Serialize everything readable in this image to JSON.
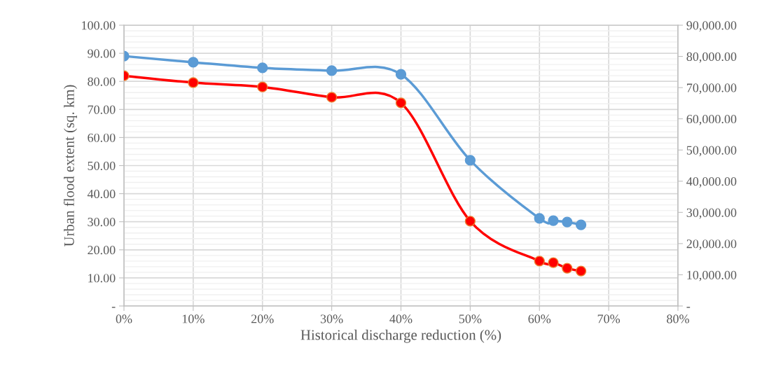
{
  "chart_data": {
    "type": "line",
    "xlabel": "Historical discharge reduction (%)",
    "ylabel": "Urban flood extent (sq. km)",
    "x": [
      0,
      10,
      20,
      30,
      40,
      50,
      60,
      62,
      64,
      66
    ],
    "series": [
      {
        "color": "#5b9bd5",
        "values": [
          89.0,
          86.8,
          84.8,
          83.8,
          82.5,
          51.9,
          31.2,
          30.4,
          29.9,
          28.9
        ]
      },
      {
        "color": "#ff0000",
        "axis": "y2",
        "values": [
          73800,
          71600,
          70200,
          66900,
          65100,
          27200,
          14400,
          13900,
          12100,
          11200
        ]
      }
    ],
    "xlim": [
      0,
      80
    ],
    "xticks": [
      {
        "value": 0,
        "label": "0%"
      },
      {
        "value": 10,
        "label": "10%"
      },
      {
        "value": 20,
        "label": "20%"
      },
      {
        "value": 30,
        "label": "30%"
      },
      {
        "value": 40,
        "label": "40%"
      },
      {
        "value": 50,
        "label": "50%"
      },
      {
        "value": 60,
        "label": "60%"
      },
      {
        "value": 70,
        "label": "70%"
      },
      {
        "value": 80,
        "label": "80%"
      }
    ],
    "ylim": [
      0,
      100
    ],
    "yticks": [
      {
        "value": 0,
        "label": "-"
      },
      {
        "value": 10,
        "label": "10.00"
      },
      {
        "value": 20,
        "label": "20.00"
      },
      {
        "value": 30,
        "label": "30.00"
      },
      {
        "value": 40,
        "label": "40.00"
      },
      {
        "value": 50,
        "label": "50.00"
      },
      {
        "value": 60,
        "label": "60.00"
      },
      {
        "value": 70,
        "label": "70.00"
      },
      {
        "value": 80,
        "label": "80.00"
      },
      {
        "value": 90,
        "label": "90.00"
      },
      {
        "value": 100,
        "label": "100.00"
      }
    ],
    "y2lim": [
      0,
      90000
    ],
    "y2ticks": [
      {
        "value": 0,
        "label": "-"
      },
      {
        "value": 10000,
        "label": "10,000.00"
      },
      {
        "value": 20000,
        "label": "20,000.00"
      },
      {
        "value": 30000,
        "label": "30,000.00"
      },
      {
        "value": 40000,
        "label": "40,000.00"
      },
      {
        "value": 50000,
        "label": "50,000.00"
      },
      {
        "value": 60000,
        "label": "60,000.00"
      },
      {
        "value": 70000,
        "label": "70,000.00"
      },
      {
        "value": 80000,
        "label": "80,000.00"
      },
      {
        "value": 90000,
        "label": "90,000.00"
      }
    ],
    "grid": true,
    "marker": "circle",
    "line_style": "solid",
    "legend": false
  }
}
